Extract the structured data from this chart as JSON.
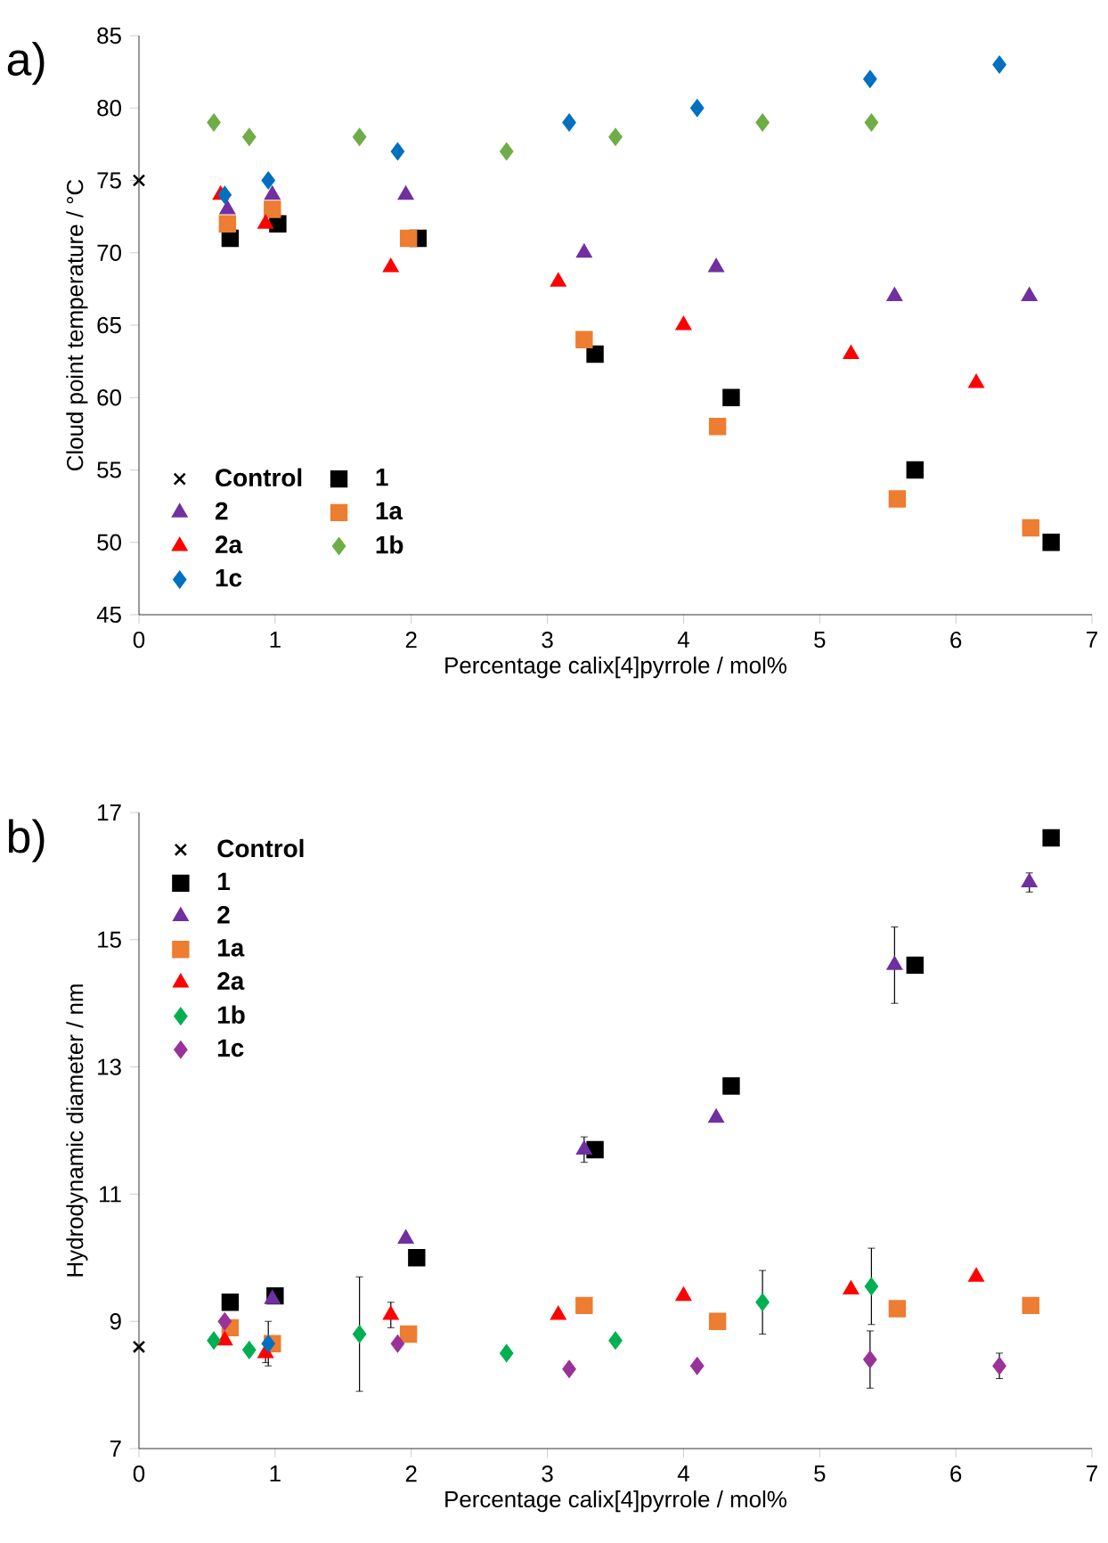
{
  "chart_data": [
    {
      "type": "scatter",
      "title": "a)",
      "xlabel": "Percentage calix[4]pyrrole / mol%",
      "ylabel": "Cloud point temperature / °C",
      "xlim": [
        0,
        7
      ],
      "ylim": [
        45,
        85
      ],
      "xticks": [
        0,
        1,
        2,
        3,
        4,
        5,
        6,
        7
      ],
      "yticks": [
        45,
        50,
        55,
        60,
        65,
        70,
        75,
        80,
        85
      ],
      "grid": false,
      "legend": "bottom left",
      "series": [
        {
          "name": "Control",
          "color": "#000000",
          "marker": "cross",
          "x": [
            0
          ],
          "values": [
            75
          ]
        },
        {
          "name": "1",
          "color": "#000000",
          "marker": "square",
          "x": [
            0.67,
            1.02,
            2.05,
            3.35,
            4.35,
            5.7,
            6.7
          ],
          "values": [
            71,
            72,
            71,
            63,
            60,
            55,
            50
          ]
        },
        {
          "name": "2",
          "color": "#7030a0",
          "marker": "triangle",
          "x": [
            0.65,
            0.98,
            1.96,
            3.27,
            4.24,
            5.55,
            6.54
          ],
          "values": [
            73,
            74,
            74,
            70,
            69,
            67,
            67
          ]
        },
        {
          "name": "1a",
          "color": "#ed7d31",
          "marker": "square",
          "x": [
            0.65,
            0.98,
            1.98,
            3.27,
            4.25,
            5.57,
            6.55
          ],
          "values": [
            72,
            73,
            71,
            64,
            58,
            53,
            51
          ]
        },
        {
          "name": "2a",
          "color": "#ff0000",
          "marker": "triangle",
          "x": [
            0.6,
            0.93,
            1.85,
            3.08,
            4.0,
            5.23,
            6.15
          ],
          "values": [
            74,
            72,
            69,
            68,
            65,
            63,
            61
          ]
        },
        {
          "name": "1b",
          "color": "#70ad47",
          "marker": "diamond",
          "x": [
            0.55,
            0.81,
            1.62,
            2.7,
            3.5,
            4.58,
            5.38
          ],
          "values": [
            79,
            78,
            78,
            77,
            78,
            79,
            79
          ]
        },
        {
          "name": "1c",
          "color": "#0070c0",
          "marker": "diamond",
          "x": [
            0.63,
            0.95,
            1.9,
            3.16,
            4.1,
            5.37,
            6.32
          ],
          "values": [
            74,
            75,
            77,
            79,
            80,
            82,
            83
          ]
        }
      ]
    },
    {
      "type": "scatter",
      "title": "b)",
      "xlabel": "Percentage calix[4]pyrrole / mol%",
      "ylabel": "Hydrodynamic diameter / nm",
      "xlim": [
        0,
        7
      ],
      "ylim": [
        7,
        17
      ],
      "xticks": [
        0,
        1,
        2,
        3,
        4,
        5,
        6,
        7
      ],
      "yticks": [
        7,
        9,
        11,
        13,
        15,
        17
      ],
      "grid": false,
      "legend": "top left",
      "series": [
        {
          "name": "Control",
          "color": "#000000",
          "marker": "cross",
          "x": [
            0
          ],
          "values": [
            8.6
          ]
        },
        {
          "name": "1",
          "color": "#000000",
          "marker": "square",
          "x": [
            0.67,
            1.0,
            2.04,
            3.35,
            4.35,
            5.7,
            6.7
          ],
          "values": [
            9.3,
            9.4,
            10.0,
            11.7,
            12.7,
            14.6,
            16.6
          ]
        },
        {
          "name": "2",
          "color": "#7030a0",
          "marker": "triangle",
          "x": [
            0.98,
            1.96,
            3.27,
            4.24,
            5.55,
            6.54
          ],
          "values": [
            9.35,
            10.3,
            11.7,
            12.2,
            14.6,
            15.9
          ],
          "errors": [
            null,
            null,
            0.2,
            null,
            0.6,
            0.15
          ]
        },
        {
          "name": "1a",
          "color": "#ed7d31",
          "marker": "square",
          "x": [
            0.67,
            0.98,
            1.98,
            3.27,
            4.25,
            5.57,
            6.55
          ],
          "values": [
            8.9,
            8.65,
            8.8,
            9.25,
            9.0,
            9.2,
            9.25
          ]
        },
        {
          "name": "2a",
          "color": "#ff0000",
          "marker": "triangle",
          "x": [
            0.63,
            0.93,
            1.85,
            3.08,
            4.0,
            5.23,
            6.15
          ],
          "values": [
            8.7,
            8.5,
            9.1,
            9.1,
            9.4,
            9.5,
            9.7
          ],
          "errors": [
            null,
            0.15,
            0.2,
            null,
            null,
            null,
            null
          ]
        },
        {
          "name": "1b",
          "color": "#00b050",
          "marker": "diamond",
          "x": [
            0.55,
            0.81,
            1.62,
            2.7,
            3.5,
            4.58,
            5.38
          ],
          "values": [
            8.7,
            8.55,
            8.8,
            8.5,
            8.7,
            9.3,
            9.55
          ],
          "errors": [
            null,
            null,
            0.9,
            null,
            null,
            0.5,
            0.6
          ]
        },
        {
          "name": "1c",
          "color": "#993399",
          "marker": "diamond",
          "x": [
            0.63,
            0.95,
            1.9,
            3.16,
            4.1,
            5.37,
            6.32
          ],
          "values": [
            9.0,
            8.65,
            8.65,
            8.25,
            8.3,
            8.4,
            8.3
          ],
          "errors": [
            null,
            0.35,
            null,
            null,
            null,
            0.45,
            0.2
          ],
          "colors": [
            "#993399",
            "#0070c0",
            "#993399",
            "#993399",
            "#993399",
            "#993399",
            "#993399"
          ]
        }
      ]
    }
  ]
}
